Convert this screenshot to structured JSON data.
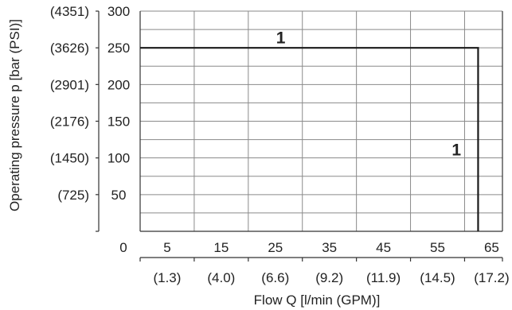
{
  "chart_data": {
    "type": "line",
    "title": "",
    "xlabel": "Flow Q [l/min (GPM)]",
    "ylabel": "Operating pressure p [bar (PSI)]",
    "xlim": [
      0,
      67
    ],
    "ylim": [
      0,
      300
    ],
    "grid": true,
    "x_tick_labels": [
      {
        "value": 0,
        "label": "0"
      },
      {
        "value": 5,
        "label": "5"
      },
      {
        "value": 15,
        "label": "15"
      },
      {
        "value": 25,
        "label": "25"
      },
      {
        "value": 35,
        "label": "35"
      },
      {
        "value": 45,
        "label": "45"
      },
      {
        "value": 55,
        "label": "55"
      },
      {
        "value": 65,
        "label": "65"
      }
    ],
    "x_tick_labels_secondary": [
      {
        "value": 5,
        "label": "(1.3)"
      },
      {
        "value": 15,
        "label": "(4.0)"
      },
      {
        "value": 25,
        "label": "(6.6)"
      },
      {
        "value": 35,
        "label": "(9.2)"
      },
      {
        "value": 45,
        "label": "(11.9)"
      },
      {
        "value": 55,
        "label": "(14.5)"
      },
      {
        "value": 65,
        "label": "(17.2)"
      }
    ],
    "y_tick_labels": [
      {
        "value": 50,
        "label": "50"
      },
      {
        "value": 100,
        "label": "100"
      },
      {
        "value": 150,
        "label": "150"
      },
      {
        "value": 200,
        "label": "200"
      },
      {
        "value": 250,
        "label": "250"
      },
      {
        "value": 300,
        "label": "300"
      }
    ],
    "y_tick_labels_secondary": [
      {
        "value": 50,
        "label": "(725)"
      },
      {
        "value": 100,
        "label": "(1450)"
      },
      {
        "value": 150,
        "label": "(2176)"
      },
      {
        "value": 200,
        "label": "(2901)"
      },
      {
        "value": 250,
        "label": "(3626)"
      },
      {
        "value": 300,
        "label": "(4351)"
      }
    ],
    "series": [
      {
        "x": [
          0,
          62.5,
          62.5
        ],
        "y": [
          250,
          250,
          0
        ],
        "color": "#1a1a1a"
      }
    ],
    "annotations": [
      {
        "text": "1",
        "x": 26,
        "y": 265
      },
      {
        "text": "1",
        "x": 58.5,
        "y": 112
      }
    ]
  }
}
